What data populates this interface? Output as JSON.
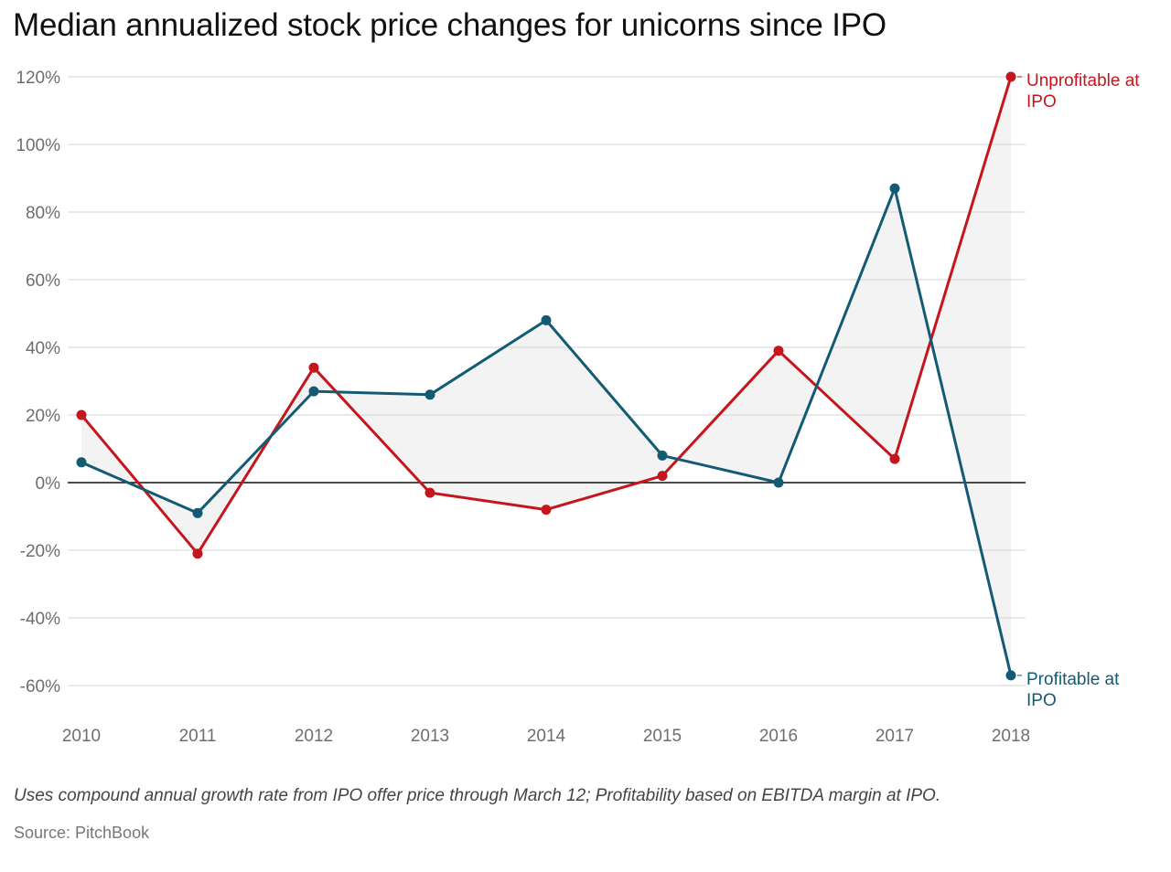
{
  "chart_data": {
    "type": "line",
    "title": "Median annualized stock price changes for unicorns since IPO",
    "xlabel": "",
    "ylabel": "",
    "x": [
      "2010",
      "2011",
      "2012",
      "2013",
      "2014",
      "2015",
      "2016",
      "2017",
      "2018"
    ],
    "ylim": [
      -70,
      120
    ],
    "yticks": [
      120,
      100,
      80,
      60,
      40,
      20,
      0,
      -20,
      -40,
      -60
    ],
    "ytick_labels": [
      "120%",
      "100%",
      "80%",
      "60%",
      "40%",
      "20%",
      "0%",
      "-20%",
      "-40%",
      "-60%"
    ],
    "grid": true,
    "series": [
      {
        "name": "Unprofitable at IPO",
        "label_lines": [
          "Unprofitable at",
          "IPO"
        ],
        "color": "#c4161c",
        "values": [
          20,
          -21,
          34,
          -3,
          -8,
          2,
          39,
          7,
          120
        ]
      },
      {
        "name": "Profitable at IPO",
        "label_lines": [
          "Profitable at",
          "IPO"
        ],
        "color": "#135b73",
        "values": [
          6,
          -9,
          27,
          26,
          48,
          8,
          0,
          87,
          -57
        ]
      }
    ],
    "range_fill_color": "#f3f3f3",
    "note": "Uses compound annual growth rate from IPO offer price through March 12; Profitability based on EBITDA margin at IPO.",
    "source": "Source: PitchBook"
  }
}
